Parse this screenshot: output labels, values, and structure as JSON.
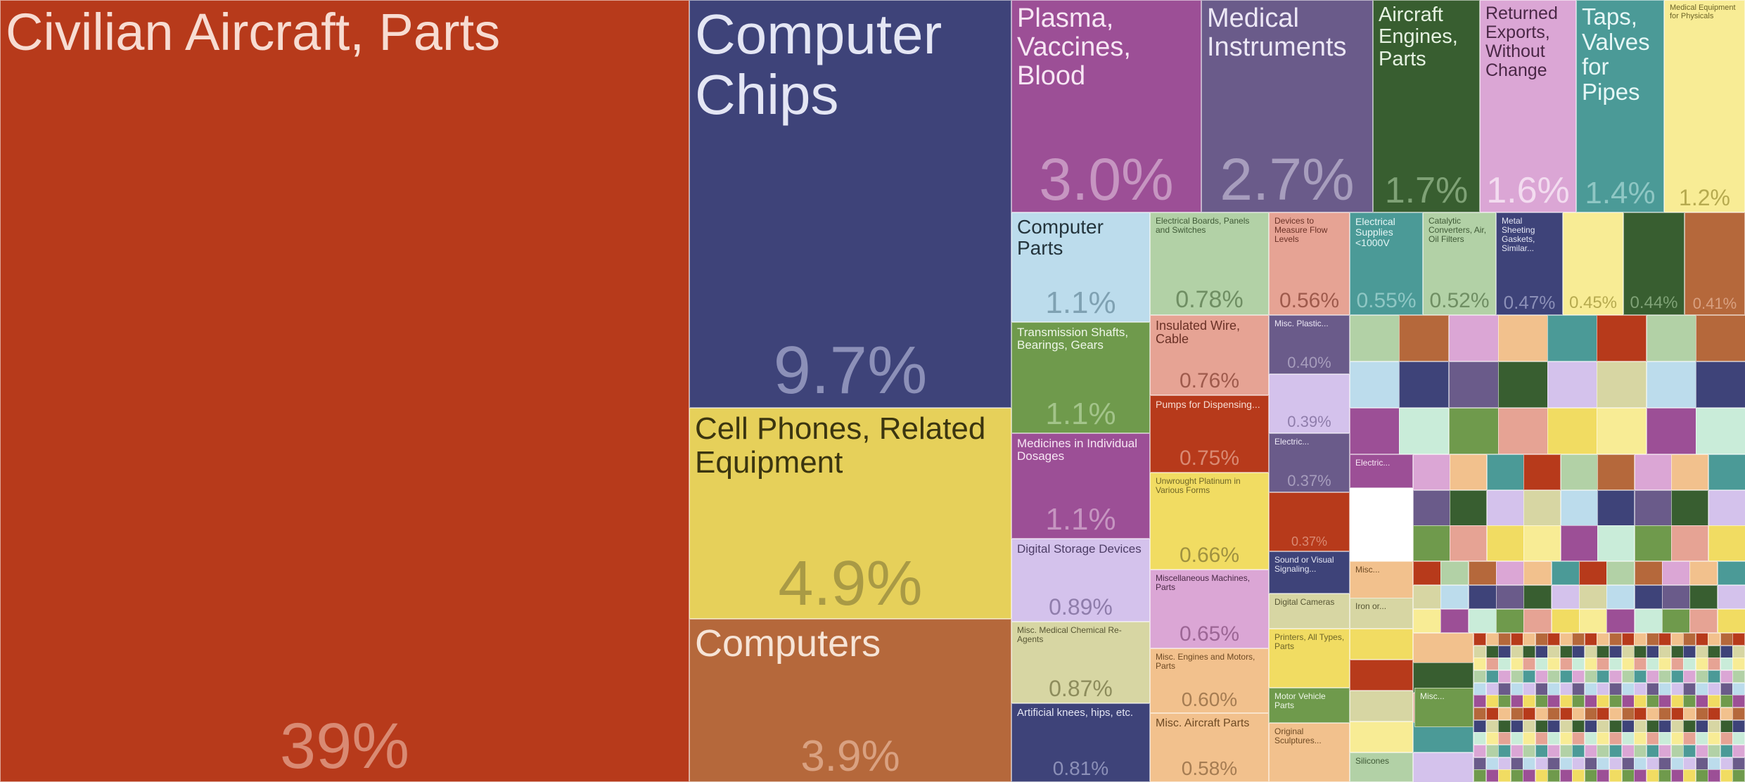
{
  "chart_data": {
    "type": "treemap",
    "items": [
      {
        "label": "Civilian Aircraft, Parts",
        "share": "39%",
        "color": "#b73a1b",
        "label_color": "#f7dcd2",
        "pct_color": "#d98a73"
      },
      {
        "label": "Computer Chips",
        "share": "9.7%",
        "color": "#3e4379",
        "label_color": "#e4e6f4",
        "pct_color": "#8c90b8"
      },
      {
        "label": "Cell Phones, Related Equipment",
        "share": "4.9%",
        "color": "#e6d05a",
        "label_color": "#3b3510",
        "pct_color": "#a99a45"
      },
      {
        "label": "Computers",
        "share": "3.9%",
        "color": "#b5683b",
        "label_color": "#f6e4d6",
        "pct_color": "#d9a181"
      },
      {
        "label": "Plasma, Vaccines, Blood",
        "share": "3.0%",
        "color": "#9c4f96",
        "label_color": "#f7e6f4",
        "pct_color": "#c695c1"
      },
      {
        "label": "Medical Instruments",
        "share": "2.7%",
        "color": "#6a5b8a",
        "label_color": "#ece7f5",
        "pct_color": "#a79dbd"
      },
      {
        "label": "Aircraft Engines, Parts",
        "share": "1.7%",
        "color": "#385e30",
        "label_color": "#e6f2e2",
        "pct_color": "#7fa276"
      },
      {
        "label": "Returned Exports, Without Change",
        "share": "1.6%",
        "color": "#dba6d5",
        "label_color": "#4a2846",
        "pct_color": "#f3dcf0"
      },
      {
        "label": "Taps, Valves for Pipes",
        "share": "1.4%",
        "color": "#4b9a97",
        "label_color": "#e6f7f6",
        "pct_color": "#8fc7c4"
      },
      {
        "label": "Medical Equipment for Physicals",
        "share": "1.2%",
        "color": "#f8ec95",
        "label_color": "#6e6528",
        "pct_color": "#b6aa4f"
      },
      {
        "label": "Computer Parts",
        "share": "1.1%",
        "color": "#bcdcec",
        "label_color": "#24343c",
        "pct_color": "#7fa1b2"
      },
      {
        "label": "Electrical Boards, Panels and Switches",
        "share": "0.78%",
        "color": "#b2d1a6",
        "label_color": "#3f5a36",
        "pct_color": "#6f8e63"
      },
      {
        "label": "Devices to Measure Flow Levels",
        "share": "0.56%",
        "color": "#e6a394",
        "label_color": "#6a3126",
        "pct_color": "#9e5a4c"
      },
      {
        "label": "Electrical Supplies <1000V",
        "share": "0.55%",
        "color": "#4b9a97",
        "label_color": "#e6f7f6",
        "pct_color": "#8fc7c4"
      },
      {
        "label": "Catalytic Converters, Air, Oil Filters",
        "share": "0.52%",
        "color": "#b2d1a6",
        "label_color": "#3f5a36",
        "pct_color": "#6f8e63"
      },
      {
        "label": "Metal Sheeting Gaskets, Similar...",
        "share": "0.47%",
        "color": "#3e4379",
        "label_color": "#e4e6f4",
        "pct_color": "#8c90b8"
      },
      {
        "label": "",
        "share": "0.45%",
        "color": "#f8ec95",
        "label_color": "#6e6528",
        "pct_color": "#b6aa4f"
      },
      {
        "label": "",
        "share": "0.44%",
        "color": "#385e30",
        "label_color": "#e6f2e2",
        "pct_color": "#7fa276"
      },
      {
        "label": "",
        "share": "0.41%",
        "color": "#b5683b",
        "label_color": "#f6e4d6",
        "pct_color": "#d9a181"
      },
      {
        "label": "Transmission Shafts, Bearings, Gears",
        "share": "1.1%",
        "color": "#6f9a4c",
        "label_color": "#eef6e8",
        "pct_color": "#a3c48a"
      },
      {
        "label": "Insulated Wire, Cable",
        "share": "0.76%",
        "color": "#e6a394",
        "label_color": "#6a3126",
        "pct_color": "#9e5a4c"
      },
      {
        "label": "Misc. Plastic...",
        "share": "0.40%",
        "color": "#6a5b8a",
        "label_color": "#ece7f5",
        "pct_color": "#a79dbd"
      },
      {
        "label": "",
        "share": "0.39%",
        "color": "#d4c2ec",
        "label_color": "#4d3d66",
        "pct_color": "#8f7dab"
      },
      {
        "label": "Pumps for Dispensing...",
        "share": "0.75%",
        "color": "#b73a1b",
        "label_color": "#f7dcd2",
        "pct_color": "#d98a73"
      },
      {
        "label": "Medicines in Individual Dosages",
        "share": "1.1%",
        "color": "#9c4f96",
        "label_color": "#f7e6f4",
        "pct_color": "#c695c1"
      },
      {
        "label": "Electric...",
        "share": "0.37%",
        "color": "#6a5b8a",
        "label_color": "#ece7f5",
        "pct_color": "#a79dbd"
      },
      {
        "label": "",
        "share": "0.37%",
        "color": "#b73a1b",
        "label_color": "#f7dcd2",
        "pct_color": "#d98a73"
      },
      {
        "label": "Electric...",
        "share": "",
        "color": "#9c4f96",
        "label_color": "#f7e6f4",
        "pct_color": "#c695c1"
      },
      {
        "label": "Unwrought Platinum in Various Forms",
        "share": "0.66%",
        "color": "#f1dc62",
        "label_color": "#6e6528",
        "pct_color": "#9f9140"
      },
      {
        "label": "Digital Storage Devices",
        "share": "0.89%",
        "color": "#d4c2ec",
        "label_color": "#4d3d66",
        "pct_color": "#8f7dab"
      },
      {
        "label": "Miscellaneous Machines, Parts",
        "share": "0.65%",
        "color": "#dba6d5",
        "label_color": "#4a2846",
        "pct_color": "#9c6695"
      },
      {
        "label": "Sound or Visual Signaling...",
        "share": "",
        "color": "#3e4379",
        "label_color": "#e4e6f4",
        "pct_color": "#8c90b8"
      },
      {
        "label": "Misc...",
        "share": "",
        "color": "#f2c18d",
        "label_color": "#6e4a24",
        "pct_color": "#a57c52"
      },
      {
        "label": "Digital Cameras",
        "share": "",
        "color": "#d7d6a3",
        "label_color": "#575634",
        "pct_color": "#8d8c5c"
      },
      {
        "label": "Iron or...",
        "share": "",
        "color": "#d7d6a3",
        "label_color": "#575634",
        "pct_color": "#8d8c5c"
      },
      {
        "label": "Misc. Medical Chemical Re-Agents",
        "share": "0.87%",
        "color": "#d7d6a3",
        "label_color": "#575634",
        "pct_color": "#8d8c5c"
      },
      {
        "label": "Misc. Engines and Motors, Parts",
        "share": "0.60%",
        "color": "#f2c18d",
        "label_color": "#6e4a24",
        "pct_color": "#a57c52"
      },
      {
        "label": "Printers, All Types, Parts",
        "share": "",
        "color": "#f1dc62",
        "label_color": "#6e6528",
        "pct_color": "#9f9140"
      },
      {
        "label": "Motor Vehicle Parts",
        "share": "",
        "color": "#6f9a4c",
        "label_color": "#eef6e8",
        "pct_color": "#a3c48a"
      },
      {
        "label": "Misc...",
        "share": "",
        "color": "#6f9a4c",
        "label_color": "#eef6e8",
        "pct_color": "#a3c48a"
      },
      {
        "label": "Artificial knees, hips, etc.",
        "share": "0.81%",
        "color": "#3e4379",
        "label_color": "#e4e6f4",
        "pct_color": "#8c90b8"
      },
      {
        "label": "Misc. Aircraft Parts",
        "share": "0.58%",
        "color": "#f2c18d",
        "label_color": "#6e4a24",
        "pct_color": "#a57c52"
      },
      {
        "label": "Original Sculptures...",
        "share": "",
        "color": "#f2c18d",
        "label_color": "#6e4a24",
        "pct_color": "#a57c52"
      },
      {
        "label": "Silicones",
        "share": "",
        "color": "#b2d1a6",
        "label_color": "#3f5a36",
        "pct_color": "#6f8e63"
      }
    ],
    "small_tile_colors": [
      "#b2d1a6",
      "#bcdcec",
      "#9c4f96",
      "#b5683b",
      "#3e4379",
      "#c9ecd9",
      "#dba6d5",
      "#6a5b8a",
      "#6f9a4c",
      "#f2c18d",
      "#385e30",
      "#e6a394",
      "#4b9a97",
      "#d4c2ec",
      "#f1dc62",
      "#b73a1b",
      "#d7d6a3",
      "#f8ec95"
    ]
  }
}
